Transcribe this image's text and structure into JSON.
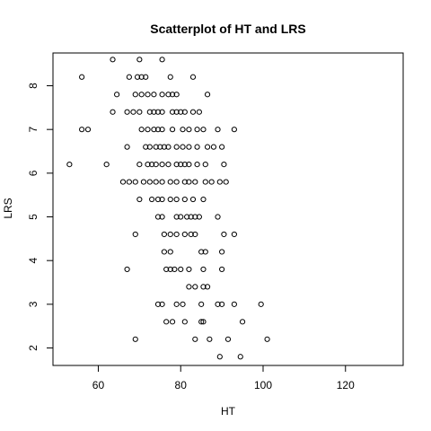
{
  "chart_data": {
    "type": "scatter",
    "title": "Scatterplot of HT and LRS",
    "xlabel": "HT",
    "ylabel": "LRS",
    "xlim": [
      49,
      134
    ],
    "ylim": [
      1.6,
      8.75
    ],
    "xticks": [
      60,
      80,
      100,
      120
    ],
    "yticks": [
      2,
      3,
      4,
      5,
      6,
      7,
      8
    ],
    "grid": false,
    "points": [
      [
        63.5,
        8.6
      ],
      [
        70,
        8.6
      ],
      [
        75.5,
        8.6
      ],
      [
        56,
        8.2
      ],
      [
        67.5,
        8.2
      ],
      [
        69.5,
        8.2
      ],
      [
        70.5,
        8.2
      ],
      [
        71.5,
        8.2
      ],
      [
        77.5,
        8.2
      ],
      [
        83,
        8.2
      ],
      [
        64.5,
        7.8
      ],
      [
        69,
        7.8
      ],
      [
        70.5,
        7.8
      ],
      [
        72,
        7.8
      ],
      [
        73.5,
        7.8
      ],
      [
        75.5,
        7.8
      ],
      [
        77,
        7.8
      ],
      [
        78,
        7.8
      ],
      [
        79,
        7.8
      ],
      [
        86.5,
        7.8
      ],
      [
        63.5,
        7.4
      ],
      [
        67,
        7.4
      ],
      [
        68.5,
        7.4
      ],
      [
        70,
        7.4
      ],
      [
        72.5,
        7.4
      ],
      [
        73.5,
        7.4
      ],
      [
        74.5,
        7.4
      ],
      [
        75.5,
        7.4
      ],
      [
        78,
        7.4
      ],
      [
        79,
        7.4
      ],
      [
        80,
        7.4
      ],
      [
        81,
        7.4
      ],
      [
        83,
        7.4
      ],
      [
        84.5,
        7.4
      ],
      [
        56,
        7.0
      ],
      [
        57.5,
        7.0
      ],
      [
        70.5,
        7.0
      ],
      [
        72,
        7.0
      ],
      [
        73.5,
        7.0
      ],
      [
        74.5,
        7.0
      ],
      [
        75.5,
        7.0
      ],
      [
        78,
        7.0
      ],
      [
        80.5,
        7.0
      ],
      [
        82,
        7.0
      ],
      [
        84,
        7.0
      ],
      [
        85.5,
        7.0
      ],
      [
        89,
        7.0
      ],
      [
        93,
        7.0
      ],
      [
        67,
        6.6
      ],
      [
        71.5,
        6.6
      ],
      [
        72.5,
        6.6
      ],
      [
        74,
        6.6
      ],
      [
        75,
        6.6
      ],
      [
        76,
        6.6
      ],
      [
        77,
        6.6
      ],
      [
        79,
        6.6
      ],
      [
        80.5,
        6.6
      ],
      [
        82,
        6.6
      ],
      [
        84,
        6.6
      ],
      [
        86.5,
        6.6
      ],
      [
        88,
        6.6
      ],
      [
        90,
        6.6
      ],
      [
        53,
        6.2
      ],
      [
        62,
        6.2
      ],
      [
        70,
        6.2
      ],
      [
        72,
        6.2
      ],
      [
        73,
        6.2
      ],
      [
        74,
        6.2
      ],
      [
        75.5,
        6.2
      ],
      [
        77,
        6.2
      ],
      [
        79,
        6.2
      ],
      [
        80,
        6.2
      ],
      [
        81,
        6.2
      ],
      [
        82,
        6.2
      ],
      [
        84,
        6.2
      ],
      [
        86,
        6.2
      ],
      [
        90.5,
        6.2
      ],
      [
        66,
        5.8
      ],
      [
        67.5,
        5.8
      ],
      [
        69,
        5.8
      ],
      [
        71,
        5.8
      ],
      [
        72.5,
        5.8
      ],
      [
        74,
        5.8
      ],
      [
        75.5,
        5.8
      ],
      [
        77.5,
        5.8
      ],
      [
        79,
        5.8
      ],
      [
        81,
        5.8
      ],
      [
        82,
        5.8
      ],
      [
        83.5,
        5.8
      ],
      [
        86,
        5.8
      ],
      [
        87.5,
        5.8
      ],
      [
        89.5,
        5.8
      ],
      [
        91,
        5.8
      ],
      [
        70,
        5.4
      ],
      [
        73,
        5.4
      ],
      [
        74.5,
        5.4
      ],
      [
        75.5,
        5.4
      ],
      [
        77.5,
        5.4
      ],
      [
        79,
        5.4
      ],
      [
        81,
        5.4
      ],
      [
        83,
        5.4
      ],
      [
        85.5,
        5.4
      ],
      [
        74.5,
        5.0
      ],
      [
        75.5,
        5.0
      ],
      [
        79,
        5.0
      ],
      [
        80,
        5.0
      ],
      [
        81.5,
        5.0
      ],
      [
        82.5,
        5.0
      ],
      [
        83.5,
        5.0
      ],
      [
        84.5,
        5.0
      ],
      [
        89,
        5.0
      ],
      [
        69,
        4.6
      ],
      [
        76,
        4.6
      ],
      [
        77.5,
        4.6
      ],
      [
        79,
        4.6
      ],
      [
        81,
        4.6
      ],
      [
        82.5,
        4.6
      ],
      [
        83.5,
        4.6
      ],
      [
        90.5,
        4.6
      ],
      [
        93,
        4.6
      ],
      [
        76,
        4.2
      ],
      [
        77.5,
        4.2
      ],
      [
        85,
        4.2
      ],
      [
        86,
        4.2
      ],
      [
        90,
        4.2
      ],
      [
        67,
        3.8
      ],
      [
        76.5,
        3.8
      ],
      [
        77.5,
        3.8
      ],
      [
        78.5,
        3.8
      ],
      [
        80,
        3.8
      ],
      [
        82,
        3.8
      ],
      [
        85.5,
        3.8
      ],
      [
        90,
        3.8
      ],
      [
        82,
        3.4
      ],
      [
        83.5,
        3.4
      ],
      [
        85.5,
        3.4
      ],
      [
        86.5,
        3.4
      ],
      [
        74.5,
        3.0
      ],
      [
        75.5,
        3.0
      ],
      [
        79,
        3.0
      ],
      [
        80.5,
        3.0
      ],
      [
        85,
        3.0
      ],
      [
        89,
        3.0
      ],
      [
        90,
        3.0
      ],
      [
        93,
        3.0
      ],
      [
        99.5,
        3.0
      ],
      [
        76.5,
        2.6
      ],
      [
        78,
        2.6
      ],
      [
        81,
        2.6
      ],
      [
        85,
        2.6
      ],
      [
        85.5,
        2.6
      ],
      [
        95,
        2.6
      ],
      [
        69,
        2.2
      ],
      [
        83.5,
        2.2
      ],
      [
        87,
        2.2
      ],
      [
        91.5,
        2.2
      ],
      [
        101,
        2.2
      ],
      [
        89.5,
        1.8
      ],
      [
        94.5,
        1.8
      ]
    ]
  }
}
